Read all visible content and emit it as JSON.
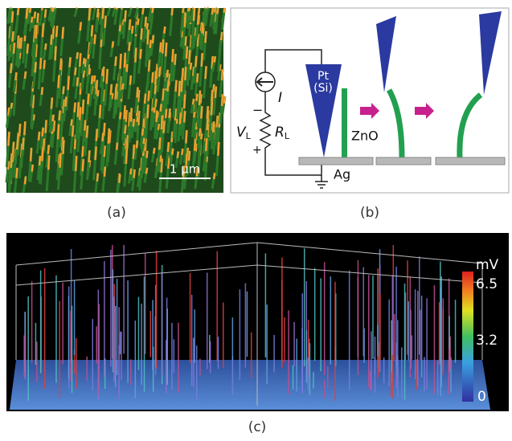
{
  "panel_a": {
    "label": "(a)",
    "scale_bar": "1 μm"
  },
  "panel_b": {
    "label": "(b)",
    "current": "I",
    "voltage": "V",
    "voltage_sub": "L",
    "resistor": "R",
    "resistor_sub": "L",
    "minus": "−",
    "plus": "+",
    "tip": "Pt",
    "tip_sub": "(Si)",
    "wire": "ZnO",
    "electrode": "Ag"
  },
  "panel_c": {
    "label": "(c)",
    "colorbar_unit": "mV",
    "colorbar_ticks": [
      6.5,
      3.2,
      0
    ]
  }
}
